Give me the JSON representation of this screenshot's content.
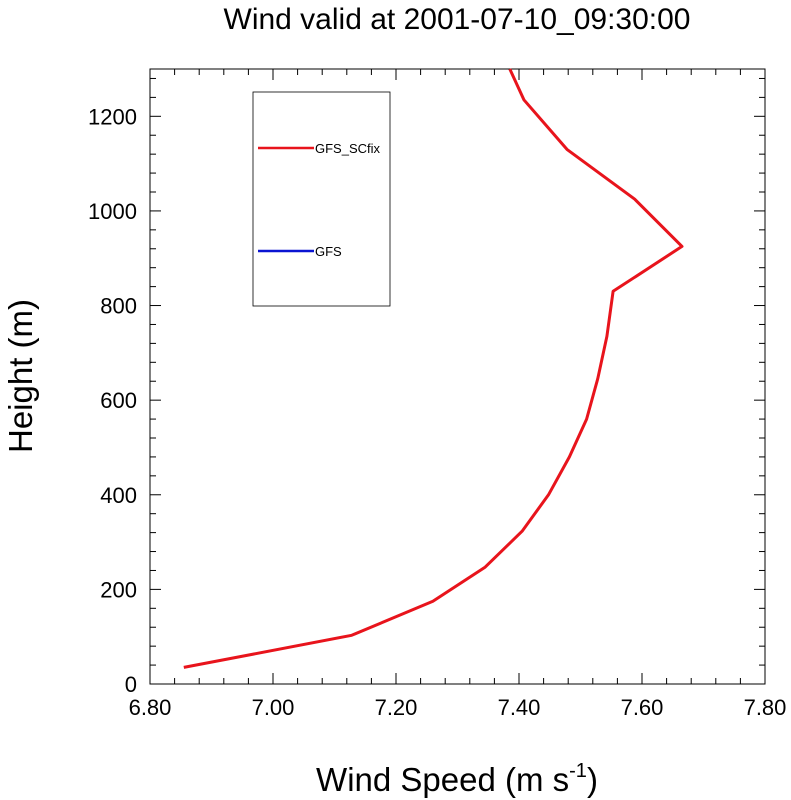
{
  "chart_data": {
    "type": "line",
    "title": "Wind valid at 2001-07-10_09:30:00",
    "xlabel": "Wind Speed (m s",
    "xlabel_superscript": "-1",
    "xlabel_suffix": ")",
    "ylabel": "Height (m)",
    "xlim": [
      6.8,
      7.8
    ],
    "ylim": [
      0,
      1300
    ],
    "xticks": [
      "6.80",
      "7.00",
      "7.20",
      "7.40",
      "7.60",
      "7.80"
    ],
    "yticks": [
      "0",
      "200",
      "400",
      "600",
      "800",
      "1000",
      "1200"
    ],
    "grid": false,
    "legend_position": "top-left (inside)",
    "series": [
      {
        "name": "GFS_SCfix",
        "color": "#e8141c",
        "points": [
          {
            "x": 6.855,
            "y": 35
          },
          {
            "x": 7.128,
            "y": 103
          },
          {
            "x": 7.26,
            "y": 175
          },
          {
            "x": 7.345,
            "y": 247
          },
          {
            "x": 7.405,
            "y": 323
          },
          {
            "x": 7.448,
            "y": 400
          },
          {
            "x": 7.482,
            "y": 480
          },
          {
            "x": 7.51,
            "y": 560
          },
          {
            "x": 7.528,
            "y": 645
          },
          {
            "x": 7.543,
            "y": 735
          },
          {
            "x": 7.553,
            "y": 830
          },
          {
            "x": 7.665,
            "y": 925
          },
          {
            "x": 7.588,
            "y": 1025
          },
          {
            "x": 7.478,
            "y": 1130
          },
          {
            "x": 7.408,
            "y": 1235
          },
          {
            "x": 7.385,
            "y": 1300
          }
        ]
      },
      {
        "name": "GFS",
        "color": "#0a14d2",
        "points": []
      }
    ]
  }
}
